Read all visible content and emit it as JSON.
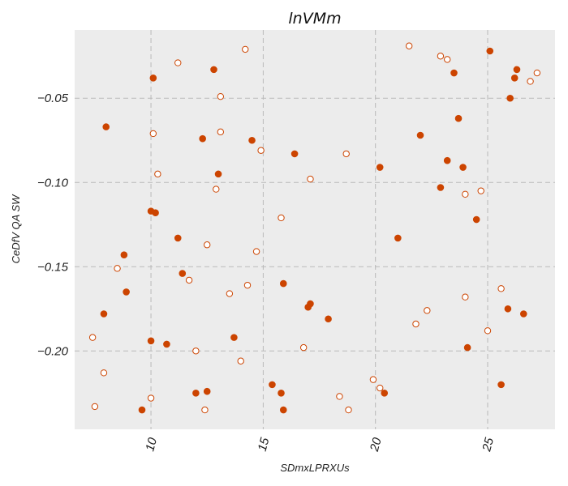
{
  "chart_data": {
    "type": "scatter",
    "title": "lnVMm",
    "xlabel": "SDmxLPRXUs",
    "ylabel": "CeDfV QA SW",
    "xlim": [
      6.6,
      28.0
    ],
    "ylim": [
      -0.2465,
      -0.0095
    ],
    "xticks": [
      10,
      15,
      20,
      25
    ],
    "yticks": [
      -0.05,
      -0.1,
      -0.15,
      -0.2
    ],
    "xtick_labels": [
      "10",
      "15",
      "20",
      "25"
    ],
    "ytick_labels": [
      "−0.05",
      "−0.10",
      "−0.15",
      "−0.20"
    ],
    "grid": true,
    "background": "#ececec",
    "marker_color": "#cc4400",
    "series": [
      {
        "marker": "filled",
        "points": [
          [
            8.0,
            -0.067
          ],
          [
            7.9,
            -0.178
          ],
          [
            8.8,
            -0.143
          ],
          [
            8.9,
            -0.165
          ],
          [
            9.6,
            -0.235
          ],
          [
            10.0,
            -0.117
          ],
          [
            10.2,
            -0.118
          ],
          [
            10.1,
            -0.038
          ],
          [
            10.0,
            -0.194
          ],
          [
            10.7,
            -0.196
          ],
          [
            11.2,
            -0.133
          ],
          [
            11.4,
            -0.154
          ],
          [
            12.0,
            -0.225
          ],
          [
            12.3,
            -0.074
          ],
          [
            12.5,
            -0.224
          ],
          [
            12.8,
            -0.033
          ],
          [
            13.0,
            -0.095
          ],
          [
            13.7,
            -0.192
          ],
          [
            14.5,
            -0.075
          ],
          [
            15.4,
            -0.22
          ],
          [
            15.8,
            -0.225
          ],
          [
            15.9,
            -0.16
          ],
          [
            15.9,
            -0.235
          ],
          [
            16.4,
            -0.083
          ],
          [
            17.0,
            -0.174
          ],
          [
            17.1,
            -0.172
          ],
          [
            17.9,
            -0.181
          ],
          [
            20.2,
            -0.091
          ],
          [
            20.4,
            -0.225
          ],
          [
            21.0,
            -0.133
          ],
          [
            22.0,
            -0.072
          ],
          [
            22.9,
            -0.103
          ],
          [
            23.2,
            -0.087
          ],
          [
            23.5,
            -0.035
          ],
          [
            23.7,
            -0.062
          ],
          [
            23.9,
            -0.091
          ],
          [
            24.1,
            -0.198
          ],
          [
            24.5,
            -0.122
          ],
          [
            25.1,
            -0.022
          ],
          [
            25.6,
            -0.22
          ],
          [
            25.9,
            -0.175
          ],
          [
            26.0,
            -0.05
          ],
          [
            26.2,
            -0.038
          ],
          [
            26.3,
            -0.033
          ],
          [
            26.6,
            -0.178
          ]
        ]
      },
      {
        "marker": "hollow",
        "points": [
          [
            7.4,
            -0.192
          ],
          [
            7.5,
            -0.233
          ],
          [
            7.9,
            -0.213
          ],
          [
            8.5,
            -0.151
          ],
          [
            10.0,
            -0.228
          ],
          [
            10.1,
            -0.071
          ],
          [
            10.3,
            -0.095
          ],
          [
            11.2,
            -0.029
          ],
          [
            11.7,
            -0.158
          ],
          [
            12.0,
            -0.2
          ],
          [
            12.4,
            -0.235
          ],
          [
            12.5,
            -0.137
          ],
          [
            12.9,
            -0.104
          ],
          [
            13.1,
            -0.07
          ],
          [
            13.1,
            -0.049
          ],
          [
            13.5,
            -0.166
          ],
          [
            14.0,
            -0.206
          ],
          [
            14.2,
            -0.021
          ],
          [
            14.3,
            -0.161
          ],
          [
            14.7,
            -0.141
          ],
          [
            14.9,
            -0.081
          ],
          [
            15.8,
            -0.121
          ],
          [
            16.8,
            -0.198
          ],
          [
            17.1,
            -0.098
          ],
          [
            18.4,
            -0.227
          ],
          [
            18.7,
            -0.083
          ],
          [
            18.8,
            -0.235
          ],
          [
            19.9,
            -0.217
          ],
          [
            20.2,
            -0.222
          ],
          [
            21.5,
            -0.019
          ],
          [
            21.8,
            -0.184
          ],
          [
            22.3,
            -0.176
          ],
          [
            22.9,
            -0.025
          ],
          [
            23.2,
            -0.027
          ],
          [
            24.0,
            -0.107
          ],
          [
            24.0,
            -0.168
          ],
          [
            24.7,
            -0.105
          ],
          [
            25.0,
            -0.188
          ],
          [
            25.6,
            -0.163
          ],
          [
            26.9,
            -0.04
          ],
          [
            27.2,
            -0.035
          ]
        ]
      }
    ]
  }
}
